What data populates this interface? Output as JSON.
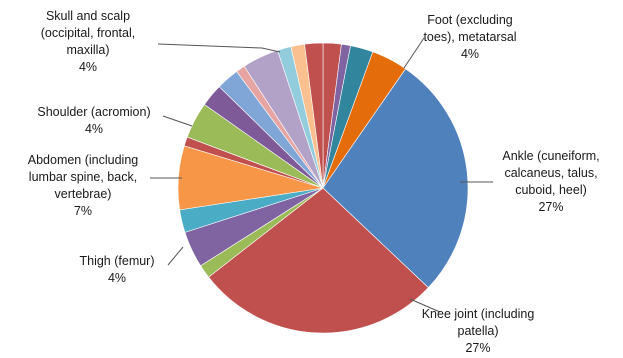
{
  "chart_data": {
    "type": "pie",
    "title": "",
    "legend": "none",
    "slices": [
      {
        "value": 2.0,
        "color": "#c0504d"
      },
      {
        "value": 1.0,
        "color": "#8064a2"
      },
      {
        "value": 2.5,
        "color": "#31859c"
      },
      {
        "value": 4.0,
        "color": "#e46c0a",
        "label": [
          "Foot (excluding",
          "toes), metatarsal",
          "4%"
        ]
      },
      {
        "value": 27.0,
        "color": "#4f81bd",
        "label": [
          "Ankle (cuneiform,",
          "calcaneus, talus,",
          "cuboid, heel)",
          "27%"
        ]
      },
      {
        "value": 27.0,
        "color": "#c0504d",
        "label": [
          "Knee joint (including",
          "patella)",
          "27%"
        ]
      },
      {
        "value": 1.5,
        "color": "#9bbb59"
      },
      {
        "value": 4.0,
        "color": "#8064a2",
        "label": [
          "Thigh (femur)",
          "4%"
        ]
      },
      {
        "value": 2.5,
        "color": "#4bacc6"
      },
      {
        "value": 7.0,
        "color": "#f79646",
        "label": [
          "Abdomen (including",
          "lumbar spine, back,",
          "vertebrae)",
          "7%"
        ]
      },
      {
        "value": 1.0,
        "color": "#c0504d"
      },
      {
        "value": 4.0,
        "color": "#9bbb59",
        "label": [
          "Shoulder (acromion)",
          "4%"
        ]
      },
      {
        "value": 2.5,
        "color": "#7e5a99"
      },
      {
        "value": 2.5,
        "color": "#7fa6d6"
      },
      {
        "value": 1.0,
        "color": "#e6a5a3"
      },
      {
        "value": 4.0,
        "color": "#b3a2c7",
        "label": [
          "Skull and scalp",
          "(occipital, frontal,",
          "maxilla)",
          "4%"
        ]
      },
      {
        "value": 1.5,
        "color": "#93cddd"
      },
      {
        "value": 1.5,
        "color": "#fac090"
      },
      {
        "value": 2.0,
        "color": "#c0504d"
      }
    ]
  }
}
